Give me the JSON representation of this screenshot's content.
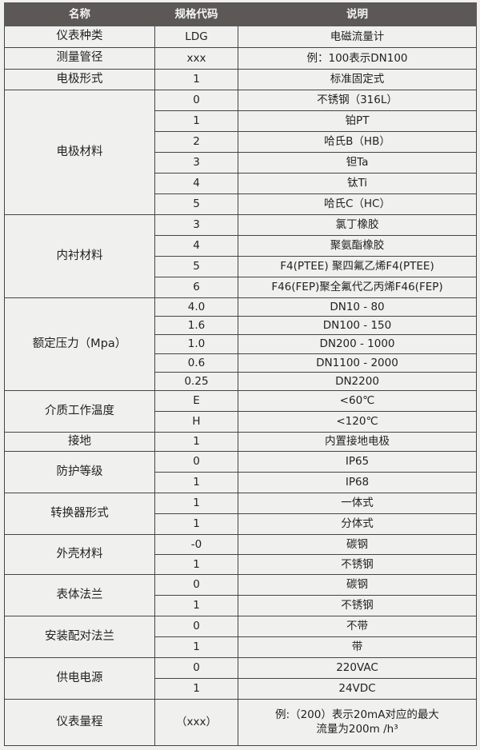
{
  "header": {
    "name": "名称",
    "code": "规格代码",
    "desc": "说明"
  },
  "groups": [
    {
      "name": "仪表种类",
      "rows": [
        {
          "code": "LDG",
          "desc": "电磁流量计"
        }
      ]
    },
    {
      "name": "测量管径",
      "rows": [
        {
          "code": "xxx",
          "desc": "例：100表示DN100"
        }
      ]
    },
    {
      "name": "电极形式",
      "rows": [
        {
          "code": "1",
          "desc": "标准固定式"
        }
      ]
    },
    {
      "name": "电极材料",
      "rows": [
        {
          "code": "0",
          "desc": "不锈钢（316L）"
        },
        {
          "code": "1",
          "desc": "铂PT"
        },
        {
          "code": "2",
          "desc": "哈氏B（HB）"
        },
        {
          "code": "3",
          "desc": "钽Ta"
        },
        {
          "code": "4",
          "desc": "钛Ti"
        },
        {
          "code": "5",
          "desc": "哈氏C（HC）"
        }
      ]
    },
    {
      "name": "内衬材料",
      "rows": [
        {
          "code": "3",
          "desc": "氯丁橡胶"
        },
        {
          "code": "4",
          "desc": "聚氨酯橡胶"
        },
        {
          "code": "5",
          "desc": "F4(PTEE) 聚四氟乙烯F4(PTEE)"
        },
        {
          "code": "6",
          "desc": "F46(FEP)聚全氟代乙丙烯F46(FEP)"
        }
      ]
    },
    {
      "name": "额定压力（Mpa）",
      "rows": [
        {
          "code": "4.0",
          "desc": "DN10 - 80"
        },
        {
          "code": "1.6",
          "desc": "DN100 - 150"
        },
        {
          "code": "1.0",
          "desc": "DN200 - 1000"
        },
        {
          "code": "0.6",
          "desc": "DN1100 - 2000"
        },
        {
          "code": "0.25",
          "desc": "DN2200"
        }
      ]
    },
    {
      "name": "介质工作温度",
      "rows": [
        {
          "code": "E",
          "desc": "<60℃"
        },
        {
          "code": "H",
          "desc": "<120℃"
        }
      ]
    },
    {
      "name": "接地",
      "rows": [
        {
          "code": "1",
          "desc": "内置接地电极"
        }
      ]
    },
    {
      "name": "防护等级",
      "rows": [
        {
          "code": "0",
          "desc": "IP65"
        },
        {
          "code": "1",
          "desc": "IP68"
        }
      ]
    },
    {
      "name": "转换器形式",
      "rows": [
        {
          "code": "1",
          "desc": "一体式"
        },
        {
          "code": "1",
          "desc": "分体式"
        }
      ]
    },
    {
      "name": "外壳材料",
      "rows": [
        {
          "code": "-0",
          "desc": "碳钢"
        },
        {
          "code": "1",
          "desc": "不锈钢"
        }
      ]
    },
    {
      "name": "表体法兰",
      "rows": [
        {
          "code": "0",
          "desc": "碳钢"
        },
        {
          "code": "1",
          "desc": "不锈钢"
        }
      ]
    },
    {
      "name": "安装配对法兰",
      "rows": [
        {
          "code": "0",
          "desc": "不带"
        },
        {
          "code": "1",
          "desc": "带"
        }
      ]
    },
    {
      "name": "供电电源",
      "rows": [
        {
          "code": "0",
          "desc": "220VAC"
        },
        {
          "code": "1",
          "desc": "24VDC"
        }
      ]
    },
    {
      "name": "仪表量程",
      "rows": [
        {
          "code": "（xxx）",
          "desc": "例:（200）表示20mA对应的最大流量为200m /h³"
        }
      ]
    }
  ]
}
